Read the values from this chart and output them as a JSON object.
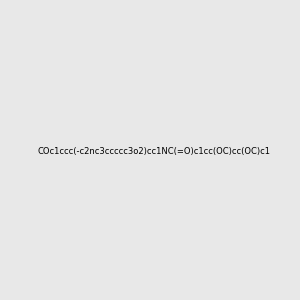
{
  "smiles": "COc1ccc(-c2nc3ccccc3o2)cc1NC(=O)c1cc(OC)cc(OC)c1",
  "title": "",
  "background_color": "#e8e8e8",
  "figure_size": [
    3.0,
    3.0
  ],
  "dpi": 100
}
